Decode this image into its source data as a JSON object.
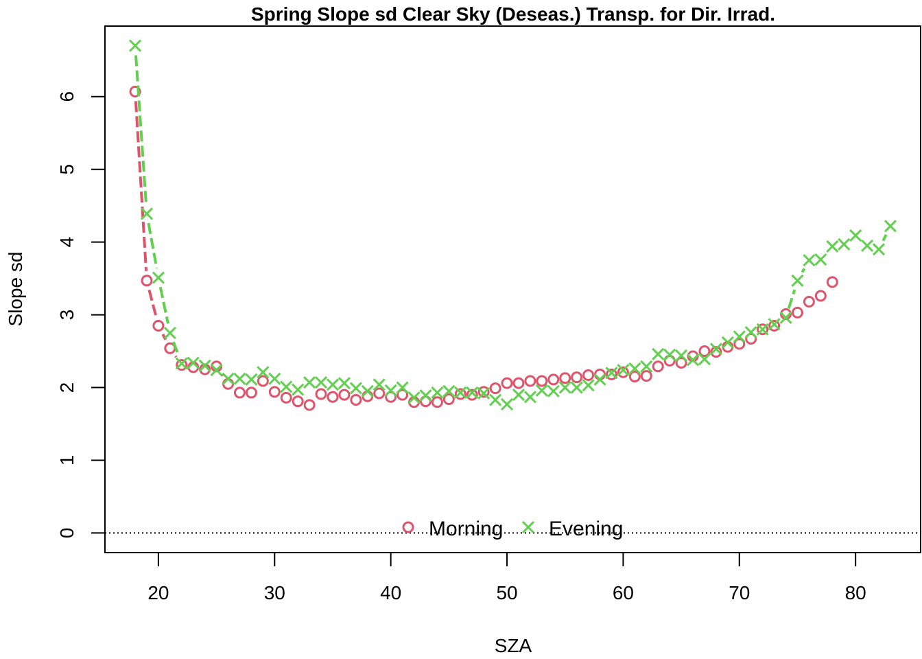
{
  "chart_data": {
    "type": "line",
    "title": "Spring Slope sd Clear Sky (Deseas.) Transp. for Dir. Irrad.",
    "xlabel": "SZA",
    "ylabel": "Slope sd",
    "xlim": [
      15.4,
      85.6
    ],
    "ylim": [
      -0.27,
      6.97
    ],
    "xticks": [
      20,
      30,
      40,
      50,
      60,
      70,
      80
    ],
    "yticks": [
      0,
      1,
      2,
      3,
      4,
      5,
      6
    ],
    "reference_line": 0,
    "legend_position": "bottom-center",
    "series": [
      {
        "name": "Morning",
        "color": "#DF536B",
        "marker": "circle",
        "line_style": "dashed",
        "points": [
          [
            18,
            6.07
          ],
          [
            19,
            3.47
          ],
          [
            20,
            2.85
          ],
          [
            21,
            2.54
          ],
          [
            22,
            2.31
          ],
          [
            23,
            2.28
          ],
          [
            24,
            2.25
          ],
          [
            25,
            2.29
          ],
          [
            26,
            2.05
          ],
          [
            27,
            1.93
          ],
          [
            28,
            1.93
          ],
          [
            29,
            2.09
          ],
          [
            30,
            1.94
          ],
          [
            31,
            1.86
          ],
          [
            32,
            1.81
          ],
          [
            33,
            1.76
          ],
          [
            34,
            1.91
          ],
          [
            35,
            1.87
          ],
          [
            36,
            1.9
          ],
          [
            37,
            1.83
          ],
          [
            38,
            1.88
          ],
          [
            39,
            1.92
          ],
          [
            40,
            1.87
          ],
          [
            41,
            1.9
          ],
          [
            42,
            1.8
          ],
          [
            43,
            1.81
          ],
          [
            44,
            1.8
          ],
          [
            45,
            1.84
          ],
          [
            46,
            1.91
          ],
          [
            47,
            1.9
          ],
          [
            48,
            1.94
          ],
          [
            49,
            1.99
          ],
          [
            50,
            2.06
          ],
          [
            51,
            2.06
          ],
          [
            52,
            2.09
          ],
          [
            53,
            2.09
          ],
          [
            54,
            2.11
          ],
          [
            55,
            2.13
          ],
          [
            56,
            2.14
          ],
          [
            57,
            2.17
          ],
          [
            58,
            2.18
          ],
          [
            59,
            2.18
          ],
          [
            60,
            2.21
          ],
          [
            61,
            2.15
          ],
          [
            62,
            2.16
          ],
          [
            63,
            2.29
          ],
          [
            64,
            2.37
          ],
          [
            65,
            2.34
          ],
          [
            66,
            2.43
          ],
          [
            67,
            2.5
          ],
          [
            68,
            2.49
          ],
          [
            69,
            2.56
          ],
          [
            70,
            2.6
          ],
          [
            71,
            2.67
          ],
          [
            72,
            2.8
          ],
          [
            73,
            2.85
          ],
          [
            74,
            3.01
          ],
          [
            75,
            3.03
          ],
          [
            76,
            3.18
          ],
          [
            77,
            3.26
          ],
          [
            78,
            3.45
          ]
        ]
      },
      {
        "name": "Evening",
        "color": "#61D04F",
        "marker": "cross",
        "line_style": "dashed",
        "points": [
          [
            18,
            6.7
          ],
          [
            19,
            4.39
          ],
          [
            20,
            3.51
          ],
          [
            21,
            2.75
          ],
          [
            22,
            2.33
          ],
          [
            23,
            2.34
          ],
          [
            24,
            2.3
          ],
          [
            25,
            2.24
          ],
          [
            26,
            2.12
          ],
          [
            27,
            2.12
          ],
          [
            28,
            2.11
          ],
          [
            29,
            2.21
          ],
          [
            30,
            2.12
          ],
          [
            31,
            2.01
          ],
          [
            32,
            1.97
          ],
          [
            33,
            2.07
          ],
          [
            34,
            2.07
          ],
          [
            35,
            2.04
          ],
          [
            36,
            2.06
          ],
          [
            37,
            1.99
          ],
          [
            38,
            1.95
          ],
          [
            39,
            2.04
          ],
          [
            40,
            1.96
          ],
          [
            41,
            2.0
          ],
          [
            42,
            1.86
          ],
          [
            43,
            1.89
          ],
          [
            44,
            1.93
          ],
          [
            45,
            1.95
          ],
          [
            46,
            1.93
          ],
          [
            47,
            1.93
          ],
          [
            48,
            1.92
          ],
          [
            49,
            1.83
          ],
          [
            50,
            1.77
          ],
          [
            51,
            1.9
          ],
          [
            52,
            1.87
          ],
          [
            53,
            1.96
          ],
          [
            54,
            1.95
          ],
          [
            55,
            2.0
          ],
          [
            56,
            2.0
          ],
          [
            57,
            2.03
          ],
          [
            58,
            2.11
          ],
          [
            59,
            2.2
          ],
          [
            60,
            2.24
          ],
          [
            61,
            2.26
          ],
          [
            62,
            2.29
          ],
          [
            63,
            2.46
          ],
          [
            64,
            2.45
          ],
          [
            65,
            2.44
          ],
          [
            66,
            2.38
          ],
          [
            67,
            2.39
          ],
          [
            68,
            2.53
          ],
          [
            69,
            2.62
          ],
          [
            70,
            2.7
          ],
          [
            71,
            2.76
          ],
          [
            72,
            2.8
          ],
          [
            73,
            2.87
          ],
          [
            74,
            2.96
          ],
          [
            75,
            3.47
          ],
          [
            76,
            3.75
          ],
          [
            77,
            3.76
          ],
          [
            78,
            3.94
          ],
          [
            79,
            3.97
          ],
          [
            80,
            4.09
          ],
          [
            81,
            3.95
          ],
          [
            82,
            3.9
          ],
          [
            83,
            4.22
          ]
        ]
      }
    ]
  }
}
